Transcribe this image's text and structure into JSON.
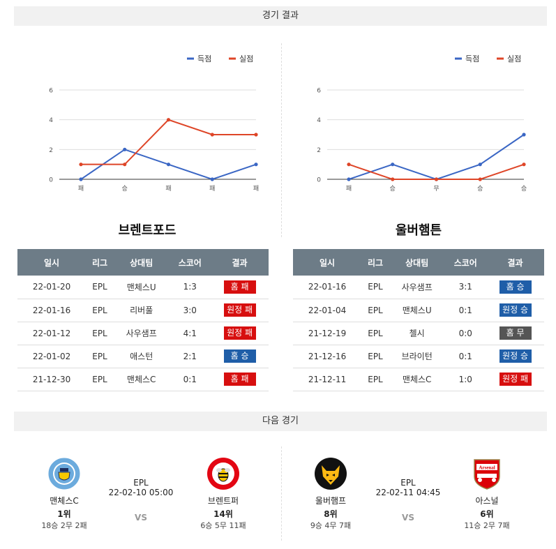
{
  "header": {
    "results_title": "경기 결과",
    "next_title": "다음 경기"
  },
  "legend": {
    "scored": "득점",
    "conceded": "실점"
  },
  "colors": {
    "scored": "#3a66c4",
    "conceded": "#de4527",
    "win": "#1f5ea8",
    "loss": "#d70f0f",
    "draw": "#555555",
    "table_header": "#6d7c87"
  },
  "chart_data": [
    {
      "type": "line",
      "categories": [
        "패",
        "승",
        "패",
        "패",
        "패"
      ],
      "ylim": [
        0,
        6
      ],
      "yticks": [
        0,
        2,
        4,
        6
      ],
      "grid": true,
      "legend_position": "top-right",
      "series": [
        {
          "name": "득점",
          "values": [
            0,
            2,
            1,
            0,
            1
          ]
        },
        {
          "name": "실점",
          "values": [
            1,
            1,
            4,
            3,
            3
          ]
        }
      ]
    },
    {
      "type": "line",
      "categories": [
        "패",
        "승",
        "무",
        "승",
        "승"
      ],
      "ylim": [
        0,
        6
      ],
      "yticks": [
        0,
        2,
        4,
        6
      ],
      "grid": true,
      "legend_position": "top-right",
      "series": [
        {
          "name": "득점",
          "values": [
            0,
            1,
            0,
            1,
            3
          ]
        },
        {
          "name": "실점",
          "values": [
            1,
            0,
            0,
            0,
            1
          ]
        }
      ]
    }
  ],
  "table_headers": [
    "일시",
    "리그",
    "상대팀",
    "스코어",
    "결과"
  ],
  "teams": [
    {
      "name": "브렌트포드",
      "rows": [
        {
          "date": "22-01-20",
          "league": "EPL",
          "opponent": "맨체스U",
          "score": "1:3",
          "result": "홈 패",
          "type": "loss"
        },
        {
          "date": "22-01-16",
          "league": "EPL",
          "opponent": "리버풀",
          "score": "3:0",
          "result": "원정 패",
          "type": "loss"
        },
        {
          "date": "22-01-12",
          "league": "EPL",
          "opponent": "사우샘프",
          "score": "4:1",
          "result": "원정 패",
          "type": "loss"
        },
        {
          "date": "22-01-02",
          "league": "EPL",
          "opponent": "애스턴",
          "score": "2:1",
          "result": "홈 승",
          "type": "win"
        },
        {
          "date": "21-12-30",
          "league": "EPL",
          "opponent": "맨체스C",
          "score": "0:1",
          "result": "홈 패",
          "type": "loss"
        }
      ]
    },
    {
      "name": "울버햄튼",
      "rows": [
        {
          "date": "22-01-16",
          "league": "EPL",
          "opponent": "사우샘프",
          "score": "3:1",
          "result": "홈 승",
          "type": "win"
        },
        {
          "date": "22-01-04",
          "league": "EPL",
          "opponent": "맨체스U",
          "score": "0:1",
          "result": "원정 승",
          "type": "win"
        },
        {
          "date": "21-12-19",
          "league": "EPL",
          "opponent": "첼시",
          "score": "0:0",
          "result": "홈 무",
          "type": "draw"
        },
        {
          "date": "21-12-16",
          "league": "EPL",
          "opponent": "브라이턴",
          "score": "0:1",
          "result": "원정 승",
          "type": "win"
        },
        {
          "date": "21-12-11",
          "league": "EPL",
          "opponent": "맨체스C",
          "score": "1:0",
          "result": "원정 패",
          "type": "loss"
        }
      ]
    }
  ],
  "next_matches": [
    {
      "league": "EPL",
      "datetime": "22-02-10 05:00",
      "vs": "VS",
      "home": {
        "name": "맨체스C",
        "rank": "1위",
        "record": "18승 2무 2패",
        "logo_text": "MANCHESTER CITY"
      },
      "away": {
        "name": "브렌트퍼",
        "rank": "14위",
        "record": "6승 5무 11패",
        "logo_text": "BRENTFORD"
      }
    },
    {
      "league": "EPL",
      "datetime": "22-02-11 04:45",
      "vs": "VS",
      "home": {
        "name": "울버햄프",
        "rank": "8위",
        "record": "9승 4무 7패",
        "logo_text": ""
      },
      "away": {
        "name": "아스널",
        "rank": "6위",
        "record": "11승 2무 7패",
        "logo_text": "Arsenal"
      }
    }
  ]
}
